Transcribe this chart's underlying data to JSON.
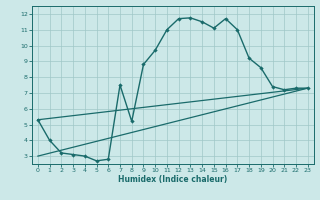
{
  "xlabel": "Humidex (Indice chaleur)",
  "xlim": [
    -0.5,
    23.5
  ],
  "ylim": [
    2.5,
    12.5
  ],
  "xticks": [
    0,
    1,
    2,
    3,
    4,
    5,
    6,
    7,
    8,
    9,
    10,
    11,
    12,
    13,
    14,
    15,
    16,
    17,
    18,
    19,
    20,
    21,
    22,
    23
  ],
  "yticks": [
    3,
    4,
    5,
    6,
    7,
    8,
    9,
    10,
    11,
    12
  ],
  "bg_color": "#cce8e8",
  "line_color": "#1a6b6b",
  "line1_x": [
    0,
    1,
    2,
    3,
    4,
    5,
    6,
    7,
    8,
    9,
    10,
    11,
    12,
    13,
    14,
    15,
    16,
    17,
    18,
    19,
    20,
    21,
    22,
    23
  ],
  "line1_y": [
    5.3,
    4.0,
    3.2,
    3.1,
    3.0,
    2.7,
    2.8,
    7.5,
    5.2,
    8.8,
    9.7,
    11.0,
    11.7,
    11.75,
    11.5,
    11.1,
    11.7,
    11.0,
    9.2,
    8.6,
    7.4,
    7.2,
    7.3,
    7.3
  ],
  "line2_x": [
    0,
    23
  ],
  "line2_y": [
    5.3,
    7.3
  ],
  "line3_x": [
    0,
    23
  ],
  "line3_y": [
    3.0,
    7.3
  ],
  "tick_fontsize": 4.5,
  "xlabel_fontsize": 5.5
}
